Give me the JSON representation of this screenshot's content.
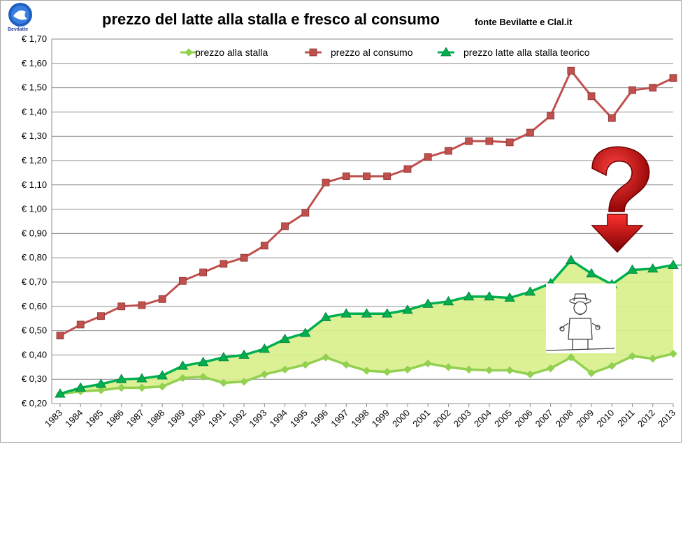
{
  "chart_data": {
    "type": "line",
    "title": "prezzo del latte alla stalla e fresco al consumo",
    "source": "fonte Bevilatte e Clal.it",
    "logo_text": "Bevilatte",
    "categories": [
      "1983",
      "1984",
      "1985",
      "1986",
      "1987",
      "1988",
      "1989",
      "1990",
      "1991",
      "1992",
      "1993",
      "1994",
      "1995",
      "1996",
      "1997",
      "1998",
      "1999",
      "2000",
      "2001",
      "2002",
      "2003",
      "2004",
      "2005",
      "2006",
      "2007",
      "2008",
      "2009",
      "2010",
      "2011",
      "2012",
      "2013"
    ],
    "ylim": [
      0.2,
      1.7
    ],
    "yticks": [
      "€ 0,20",
      "€ 0,30",
      "€ 0,40",
      "€ 0,50",
      "€ 0,60",
      "€ 0,70",
      "€ 0,80",
      "€ 0,90",
      "€ 1,00",
      "€ 1,10",
      "€ 1,20",
      "€ 1,30",
      "€ 1,40",
      "€ 1,50",
      "€ 1,60",
      "€ 1,70"
    ],
    "grid": true,
    "legend_position": "top",
    "series": [
      {
        "name": "prezzo alla stalla",
        "color": "#92d050",
        "marker": "diamond",
        "values": [
          0.24,
          0.25,
          0.255,
          0.265,
          0.265,
          0.27,
          0.305,
          0.31,
          0.285,
          0.29,
          0.32,
          0.34,
          0.36,
          0.39,
          0.36,
          0.335,
          0.33,
          0.34,
          0.365,
          0.35,
          0.34,
          0.337,
          0.337,
          0.32,
          0.345,
          0.39,
          0.325,
          0.355,
          0.395,
          0.385,
          0.405
        ]
      },
      {
        "name": "prezzo al consumo",
        "color": "#c0504d",
        "marker": "square",
        "values": [
          0.48,
          0.525,
          0.56,
          0.6,
          0.605,
          0.63,
          0.705,
          0.74,
          0.775,
          0.8,
          0.85,
          0.93,
          0.985,
          1.11,
          1.135,
          1.135,
          1.135,
          1.165,
          1.215,
          1.24,
          1.28,
          1.28,
          1.275,
          1.315,
          1.385,
          1.57,
          1.465,
          1.375,
          1.49,
          1.5,
          1.54
        ]
      },
      {
        "name": "prezzo latte alla stalla teorico",
        "color": "#00b050",
        "marker": "triangle",
        "values": [
          0.24,
          0.265,
          0.28,
          0.3,
          0.303,
          0.315,
          0.355,
          0.37,
          0.39,
          0.4,
          0.425,
          0.465,
          0.49,
          0.555,
          0.57,
          0.57,
          0.57,
          0.585,
          0.61,
          0.62,
          0.64,
          0.64,
          0.635,
          0.66,
          0.695,
          0.79,
          0.735,
          0.69,
          0.75,
          0.755,
          0.77
        ]
      }
    ]
  }
}
